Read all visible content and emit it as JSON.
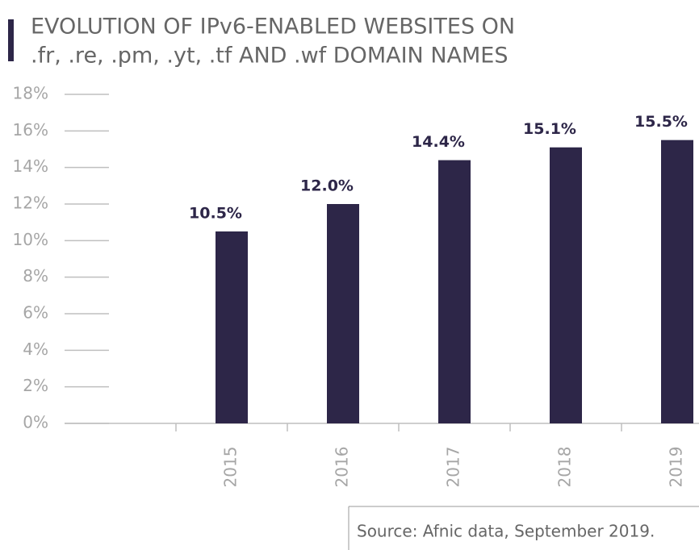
{
  "chart_data": {
    "type": "bar",
    "title": [
      "EVOLUTION OF IPv6-ENABLED WEBSITES ON",
      ".fr, .re, .pm, .yt, .tf AND .wf DOMAIN NAMES"
    ],
    "categories": [
      "2015",
      "2016",
      "2017",
      "2018",
      "2019"
    ],
    "values": [
      10.5,
      12.0,
      14.4,
      15.1,
      15.5
    ],
    "value_labels": [
      "10.5%",
      "12.0%",
      "14.4%",
      "15.1%",
      "15.5%"
    ],
    "color": "#2d2648",
    "ylim": [
      0,
      18
    ],
    "yticks": [
      {
        "value": 0,
        "label": "0%"
      },
      {
        "value": 2,
        "label": "2%"
      },
      {
        "value": 4,
        "label": "4%"
      },
      {
        "value": 6,
        "label": "6%"
      },
      {
        "value": 8,
        "label": "8%"
      },
      {
        "value": 10,
        "label": "10%"
      },
      {
        "value": 12,
        "label": "12%"
      },
      {
        "value": 14,
        "label": "14%"
      },
      {
        "value": 16,
        "label": "16%"
      },
      {
        "value": 18,
        "label": "18%"
      }
    ],
    "source": "Source: Afnic data, September 2019."
  }
}
